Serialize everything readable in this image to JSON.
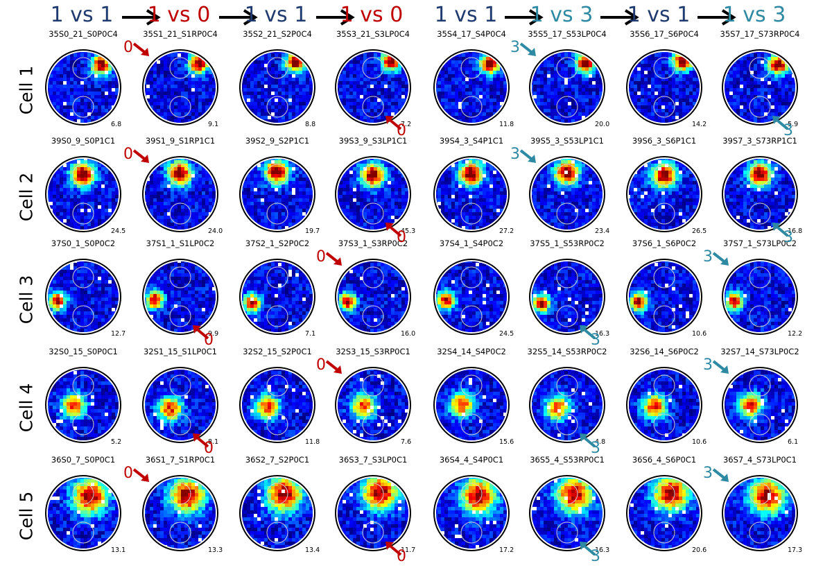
{
  "colors": {
    "title_blue": "#1f3a6e",
    "title_red": "#c00000",
    "title_teal": "#2e8aa3",
    "marker_red": "#c00000",
    "marker_teal": "#2e8aa3",
    "arrow_black": "#000000"
  },
  "header": [
    {
      "text": "1 vs 1",
      "color": "title_blue"
    },
    {
      "text": "1 vs 0",
      "color": "title_red"
    },
    {
      "text": "1 vs 1",
      "color": "title_blue"
    },
    {
      "text": "1 vs 0",
      "color": "title_red"
    },
    {
      "text": "1 vs 1",
      "color": "title_blue"
    },
    {
      "text": "1 vs 3",
      "color": "title_teal"
    },
    {
      "text": "1 vs 1",
      "color": "title_blue"
    },
    {
      "text": "1 vs 3",
      "color": "title_teal"
    }
  ],
  "rows": [
    {
      "label": "Cell 1",
      "cells": [
        {
          "title": "35S0_21_S0P0C4",
          "rate": "6.8"
        },
        {
          "title": "35S1_21_S1RP0C4",
          "rate": "9.1"
        },
        {
          "title": "35S2_21_S2P0C4",
          "rate": "8.8"
        },
        {
          "title": "35S3_21_S3LP0C4",
          "rate": "7.2"
        },
        {
          "title": "35S4_17_S4P0C4",
          "rate": "11.8"
        },
        {
          "title": "35S5_17_S53LP0C4",
          "rate": "20.0"
        },
        {
          "title": "35S6_17_S6P0C4",
          "rate": "14.2"
        },
        {
          "title": "35S7_17_S73RP0C4",
          "rate": "5.9"
        }
      ]
    },
    {
      "label": "Cell 2",
      "cells": [
        {
          "title": "39S0_9_S0P1C1",
          "rate": "24.5"
        },
        {
          "title": "39S1_9_S1RP1C1",
          "rate": "24.0"
        },
        {
          "title": "39S2_9_S2P1C1",
          "rate": "19.7"
        },
        {
          "title": "39S3_9_S3LP1C1",
          "rate": "45.3"
        },
        {
          "title": "39S4_3_S4P1C1",
          "rate": "27.2"
        },
        {
          "title": "39S5_3_S53LP1C1",
          "rate": "23.4"
        },
        {
          "title": "39S6_3_S6P1C1",
          "rate": "26.5"
        },
        {
          "title": "39S7_3_S73RP1C1",
          "rate": "16.8"
        }
      ]
    },
    {
      "label": "Cell 3",
      "cells": [
        {
          "title": "37S0_1_S0P0C2",
          "rate": "12.7"
        },
        {
          "title": "37S1_1_S1LP0C2",
          "rate": "9.9"
        },
        {
          "title": "37S2_1_S2P0C2",
          "rate": "7.1"
        },
        {
          "title": "37S3_1_S3RP0C2",
          "rate": "16.0"
        },
        {
          "title": "37S4_1_S4P0C2",
          "rate": "24.5"
        },
        {
          "title": "37S5_1_S53RP0C2",
          "rate": "16.3"
        },
        {
          "title": "37S6_1_S6P0C2",
          "rate": "10.6"
        },
        {
          "title": "37S7_1_S73LP0C2",
          "rate": "12.2"
        }
      ]
    },
    {
      "label": "Cell 4",
      "cells": [
        {
          "title": "32S0_15_S0P0C1",
          "rate": "5.2"
        },
        {
          "title": "32S1_15_S1LP0C1",
          "rate": "8.1"
        },
        {
          "title": "32S2_15_S2P0C1",
          "rate": "11.8"
        },
        {
          "title": "32S3_15_S3RP0C1",
          "rate": "7.6"
        },
        {
          "title": "32S4_14_S4P0C2",
          "rate": "15.6"
        },
        {
          "title": "32S5_14_S53RP0C2",
          "rate": "4.8"
        },
        {
          "title": "32S6_14_S6P0C2",
          "rate": "10.6"
        },
        {
          "title": "32S7_14_S73LP0C2",
          "rate": "6.1"
        }
      ]
    },
    {
      "label": "Cell 5",
      "cells": [
        {
          "title": "36S0_7_S0P0C1",
          "rate": "13.1"
        },
        {
          "title": "36S1_7_S1RP0C1",
          "rate": "13.3"
        },
        {
          "title": "36S2_7_S2P0C1",
          "rate": "13.4"
        },
        {
          "title": "36S3_7_S3LP0C1",
          "rate": "11.7"
        },
        {
          "title": "36S4_4_S4P0C1",
          "rate": "17.2"
        },
        {
          "title": "36S5_4_S53RP0C1",
          "rate": "16.3"
        },
        {
          "title": "36S6_4_S6P0C1",
          "rate": "20.6"
        },
        {
          "title": "36S7_4_S73LP0C1",
          "rate": "17.3"
        }
      ]
    }
  ],
  "markers": [
    {
      "row": 0,
      "col": 1,
      "label": "0",
      "color": "marker_red",
      "pos": "top"
    },
    {
      "row": 0,
      "col": 3,
      "label": "0",
      "color": "marker_red",
      "pos": "bottom"
    },
    {
      "row": 0,
      "col": 5,
      "label": "3",
      "color": "marker_teal",
      "pos": "top"
    },
    {
      "row": 0,
      "col": 7,
      "label": "3",
      "color": "marker_teal",
      "pos": "bottom"
    },
    {
      "row": 1,
      "col": 1,
      "label": "0",
      "color": "marker_red",
      "pos": "top"
    },
    {
      "row": 1,
      "col": 3,
      "label": "0",
      "color": "marker_red",
      "pos": "bottom"
    },
    {
      "row": 1,
      "col": 5,
      "label": "3",
      "color": "marker_teal",
      "pos": "top"
    },
    {
      "row": 1,
      "col": 7,
      "label": "3",
      "color": "marker_teal",
      "pos": "bottom"
    },
    {
      "row": 2,
      "col": 1,
      "label": "0",
      "color": "marker_red",
      "pos": "bottom"
    },
    {
      "row": 2,
      "col": 3,
      "label": "0",
      "color": "marker_red",
      "pos": "top"
    },
    {
      "row": 2,
      "col": 5,
      "label": "3",
      "color": "marker_teal",
      "pos": "bottom"
    },
    {
      "row": 2,
      "col": 7,
      "label": "3",
      "color": "marker_teal",
      "pos": "top"
    },
    {
      "row": 3,
      "col": 1,
      "label": "0",
      "color": "marker_red",
      "pos": "bottom"
    },
    {
      "row": 3,
      "col": 3,
      "label": "0",
      "color": "marker_red",
      "pos": "top"
    },
    {
      "row": 3,
      "col": 5,
      "label": "3",
      "color": "marker_teal",
      "pos": "bottom"
    },
    {
      "row": 3,
      "col": 7,
      "label": "3",
      "color": "marker_teal",
      "pos": "top"
    },
    {
      "row": 4,
      "col": 1,
      "label": "0",
      "color": "marker_red",
      "pos": "top"
    },
    {
      "row": 4,
      "col": 3,
      "label": "0",
      "color": "marker_red",
      "pos": "bottom"
    },
    {
      "row": 4,
      "col": 5,
      "label": "3",
      "color": "marker_teal",
      "pos": "bottom"
    },
    {
      "row": 4,
      "col": 7,
      "label": "3",
      "color": "marker_teal",
      "pos": "top"
    }
  ]
}
